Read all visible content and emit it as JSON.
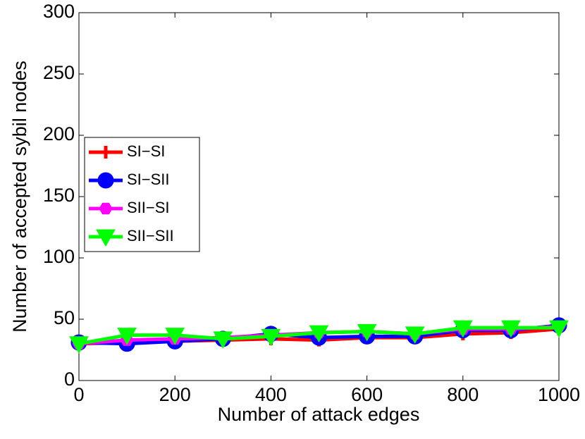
{
  "chart_data": {
    "type": "line",
    "x_label": "Number of attack edges",
    "y_label": "Number of accepted sybil nodes",
    "x": [
      0,
      100,
      200,
      300,
      400,
      500,
      600,
      700,
      800,
      900,
      1000
    ],
    "series": [
      {
        "name": "SI−SI",
        "color": "#ff0000",
        "marker": "plus",
        "values": [
          30,
          31,
          32,
          33,
          34,
          33,
          35,
          35,
          38,
          39,
          42
        ]
      },
      {
        "name": "SI−SII",
        "color": "#0000ff",
        "marker": "circle",
        "values": [
          31,
          30,
          32,
          34,
          38,
          35,
          36,
          36,
          41,
          41,
          45
        ]
      },
      {
        "name": "SII−SI",
        "color": "#ff00ff",
        "marker": "hexagon",
        "values": [
          30,
          33,
          34,
          35,
          37,
          39,
          40,
          38,
          42,
          42,
          44
        ]
      },
      {
        "name": "SII−SII",
        "color": "#00ff00",
        "marker": "triangle-down",
        "values": [
          30,
          37,
          37,
          34,
          36,
          39,
          40,
          38,
          43,
          43,
          43
        ]
      }
    ],
    "xlim": [
      0,
      1000
    ],
    "xticks": [
      0,
      200,
      400,
      600,
      800,
      1000
    ],
    "ylim": [
      0,
      300
    ],
    "yticks": [
      0,
      50,
      100,
      150,
      200,
      250,
      300
    ],
    "grid": false,
    "legend_position": "center-left"
  }
}
